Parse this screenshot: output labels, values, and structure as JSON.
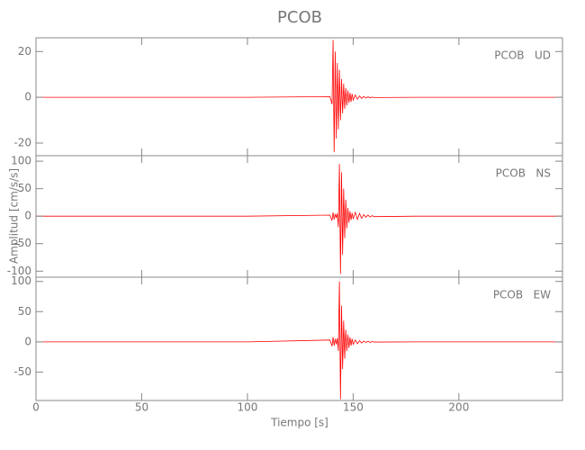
{
  "chart_data": {
    "type": "line",
    "title": "PCOB",
    "x_label": "Tiempo [s]",
    "y_label": "Amplitud [cm/s/s]",
    "xlim": [
      0,
      249
    ],
    "xticks": [
      0,
      50,
      100,
      150,
      200
    ],
    "x": [
      0,
      50,
      100,
      139,
      140,
      140.5,
      141,
      141.5,
      142,
      142.5,
      143,
      143.5,
      144,
      144.5,
      145,
      145.5,
      146,
      146.5,
      147,
      147.5,
      148,
      148.5,
      149,
      149.5,
      150,
      151,
      152,
      153,
      154,
      155,
      156,
      157,
      158,
      159,
      160,
      180,
      249
    ],
    "series": [
      {
        "name": "PCOB   UD",
        "color": "#ff0000",
        "ylim": [
          -25.5,
          26
        ],
        "yticks": [
          -20,
          0,
          20
        ],
        "values": [
          0,
          0,
          0,
          0.3,
          -3,
          25,
          -24,
          20,
          -18,
          15,
          -14,
          12,
          -10,
          8,
          -7,
          6,
          -5,
          4,
          -3.5,
          3,
          -2.5,
          2,
          -2,
          1.5,
          -1.2,
          1,
          -0.8,
          0.6,
          -0.5,
          0.4,
          -0.3,
          0.2,
          -0.2,
          0.1,
          -0.1,
          0,
          0
        ]
      },
      {
        "name": "PCOB   NS",
        "color": "#ff0000",
        "ylim": [
          -111,
          110
        ],
        "yticks": [
          -100,
          -50,
          0,
          50,
          100
        ],
        "values": [
          0,
          0,
          0,
          2,
          -8,
          7,
          -6,
          4,
          -3,
          5,
          -20,
          95,
          -105,
          80,
          -70,
          50,
          -40,
          30,
          -22,
          15,
          -12,
          9,
          -7,
          6,
          -5,
          7,
          -6,
          5,
          -4,
          3,
          -2,
          2,
          -1.5,
          1,
          -0.8,
          0,
          0
        ]
      },
      {
        "name": "PCOB   EW",
        "color": "#ff0000",
        "ylim": [
          -97,
          107
        ],
        "yticks": [
          -50,
          0,
          50,
          100
        ],
        "values": [
          0,
          0,
          0,
          3,
          -7,
          8,
          -6,
          5,
          -4,
          6,
          -15,
          100,
          -95,
          60,
          -45,
          35,
          -28,
          20,
          -15,
          12,
          -10,
          8,
          -6,
          5,
          -4,
          3,
          -3,
          2,
          -2,
          1.5,
          -1,
          1,
          -0.8,
          0.5,
          -0.3,
          0,
          0
        ]
      }
    ]
  }
}
